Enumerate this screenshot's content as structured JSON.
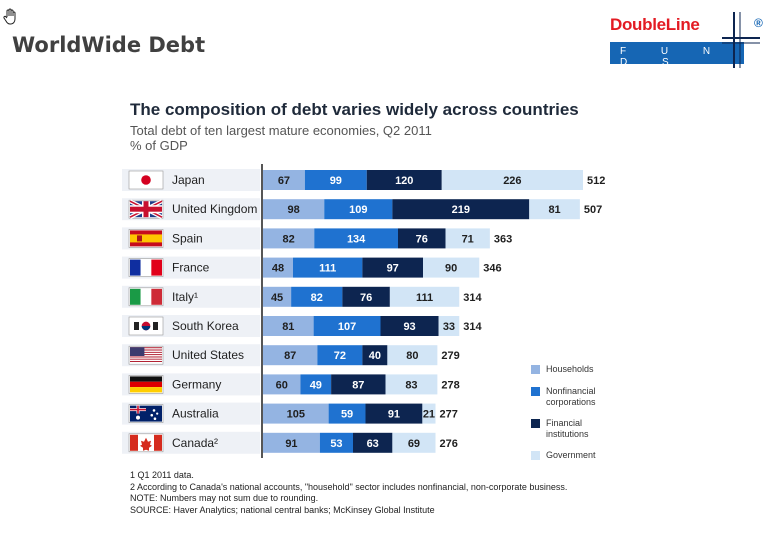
{
  "slide": {
    "title": "WorldWide Debt"
  },
  "logo": {
    "brand": "DoubleLine",
    "sub": "F U N D S",
    "mark": "®"
  },
  "chart_data": {
    "type": "bar",
    "orientation": "horizontal",
    "stacked": true,
    "title": "The composition of debt varies widely across countries",
    "subtitle": "Total debt of ten largest mature economies, Q2 2011",
    "unit": "% of GDP",
    "categories": [
      "Japan",
      "United Kingdom",
      "Spain",
      "France",
      "Italy¹",
      "South Korea",
      "United States",
      "Germany",
      "Australia",
      "Canada²"
    ],
    "totals": [
      512,
      507,
      363,
      346,
      314,
      314,
      279,
      278,
      277,
      276
    ],
    "series": [
      {
        "name": "Households",
        "color": "#94b4e2",
        "values": [
          67,
          98,
          82,
          48,
          45,
          81,
          87,
          60,
          105,
          91
        ]
      },
      {
        "name": "Nonfinancial corporations",
        "color": "#1f72d0",
        "values": [
          99,
          109,
          134,
          111,
          82,
          107,
          72,
          49,
          59,
          53
        ]
      },
      {
        "name": "Financial institutions",
        "color": "#0d2550",
        "values": [
          120,
          219,
          76,
          97,
          76,
          93,
          40,
          87,
          91,
          63
        ]
      },
      {
        "name": "Government",
        "color": "#d2e5f6",
        "values": [
          226,
          81,
          71,
          90,
          111,
          33,
          80,
          83,
          21,
          69
        ]
      }
    ],
    "legend": "right",
    "grid": false
  },
  "legend": {
    "households": "Households",
    "nonfinancial_1": "Nonfinancial",
    "nonfinancial_2": "corporations",
    "financial_1": "Financial",
    "financial_2": "institutions",
    "government": "Government"
  },
  "notes": {
    "n1": "1  Q1 2011 data.",
    "n2": "2  According to Canada's national accounts, \"household\" sector includes nonfinancial, non-corporate business.",
    "n3": "NOTE: Numbers may not sum due to rounding.",
    "n4": "SOURCE: Haver Analytics; national central banks; McKinsey Global Institute"
  }
}
